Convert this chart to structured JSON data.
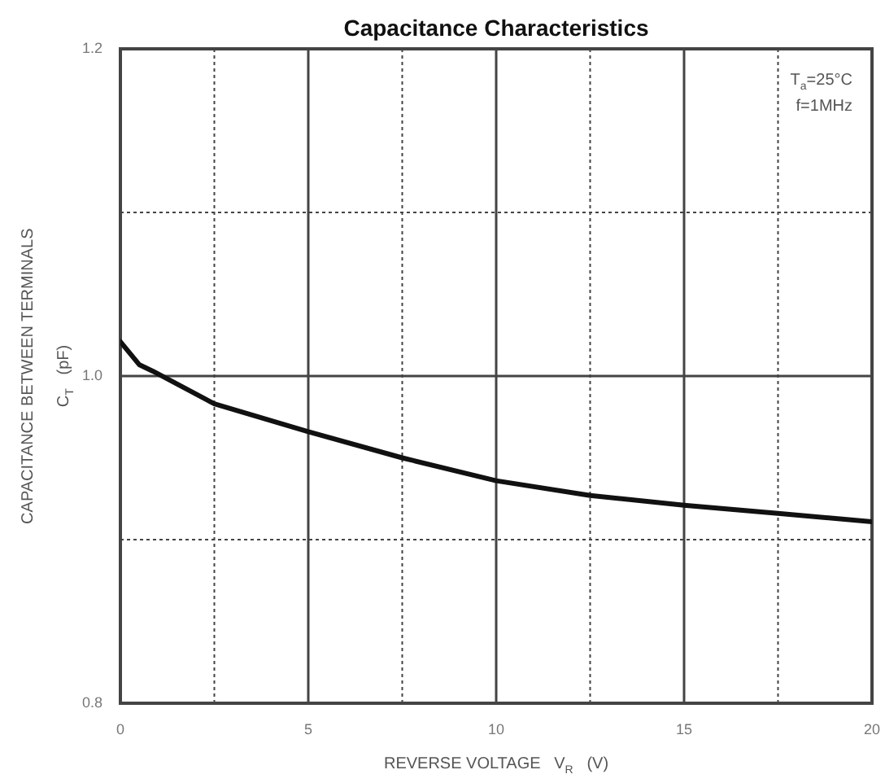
{
  "chart_data": {
    "type": "line",
    "title": "Capacitance Characteristics",
    "xlabel": "REVERSE VOLTAGE   V$_{R}$   (V)",
    "ylabel": "CAPACITANCE BETWEEN TERMINALS\nC$_{T}$   (pF)",
    "annotations": [
      "T$_{a}$=25°C",
      "f=1MHz"
    ],
    "x": [
      0,
      0.5,
      0.86,
      2.5,
      5,
      7.5,
      10,
      12.5,
      15,
      17.5,
      20
    ],
    "series": [
      {
        "color": "#111111",
        "values": [
          1.021,
          1.007,
          1.003,
          0.983,
          0.966,
          0.95,
          0.936,
          0.927,
          0.921,
          0.916,
          0.911
        ]
      }
    ],
    "xlim": [
      0,
      20
    ],
    "xticks": [
      0,
      {
        "value": 2.5,
        "label": null
      },
      5,
      {
        "value": 7.5,
        "label": null
      },
      10,
      {
        "value": 12.5,
        "label": null
      },
      15,
      {
        "value": 17.5,
        "label": null
      },
      20
    ],
    "ylim": [
      0.8,
      1.2
    ],
    "yticks": [
      0.8,
      {
        "value": 0.9,
        "label": null
      },
      {
        "value": 1,
        "label": "1.0"
      },
      {
        "value": 1.1,
        "label": null
      },
      1.2
    ],
    "grid": true,
    "legend": false,
    "marker": "none",
    "line_style": "solid"
  }
}
